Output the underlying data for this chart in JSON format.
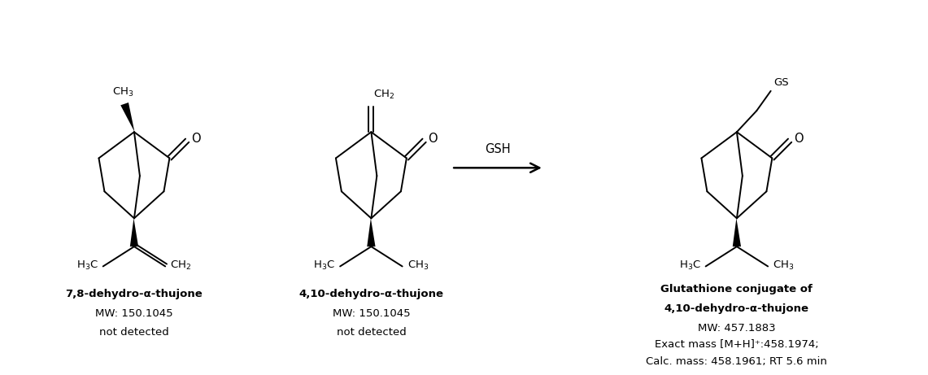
{
  "bg_color": "#ffffff",
  "figsize": [
    11.41,
    4.61
  ],
  "dpi": 100,
  "label1_bold": "7,8-dehydro-α-thujone",
  "label1_mw": "MW: 150.1045",
  "label1_nd": "not detected",
  "label2_bold": "4,10-dehydro-α-thujone",
  "label2_mw": "MW: 150.1045",
  "label2_nd": "not detected",
  "label3_bold1": "Glutathione conjugate of",
  "label3_bold2": "4,10-dehydro-α-thujone",
  "label3_mw": "MW: 457.1883",
  "label3_em": "Exact mass [M+H]⁺:458.1974;",
  "label3_calc": "Calc. mass: 458.1961; RT 5.6 min",
  "arrow_label": "GSH"
}
